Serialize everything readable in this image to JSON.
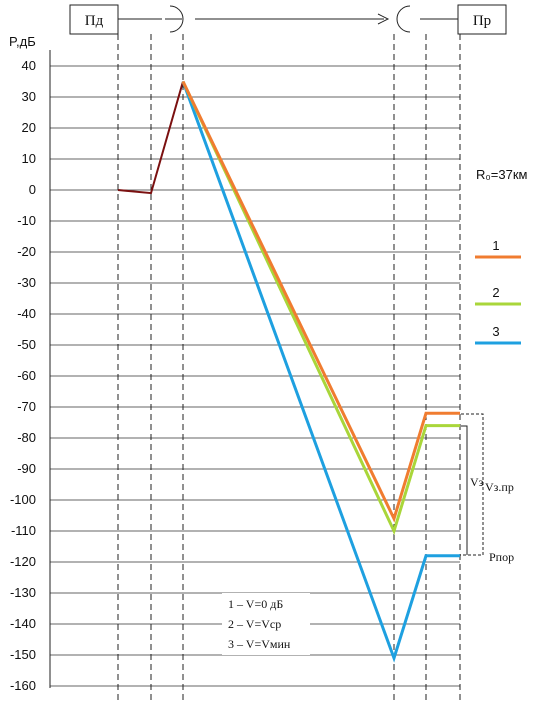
{
  "chart_data": {
    "type": "line",
    "ylabel": "P,дБ",
    "ylim": [
      -160,
      40
    ],
    "yticks": [
      40,
      30,
      20,
      10,
      0,
      -10,
      -20,
      -30,
      -40,
      -50,
      -60,
      -70,
      -80,
      -90,
      -100,
      -110,
      -120,
      -130,
      -140,
      -150,
      -160
    ],
    "grid": true,
    "stations": {
      "transmitter": "Пд",
      "receiver": "Пр"
    },
    "range_label": "R₀=37км",
    "transmitter_path": {
      "color": "#7b1010",
      "y": [
        0,
        -1,
        35
      ]
    },
    "series": [
      {
        "name": "1",
        "color": "#f07c30",
        "y": [
          35,
          -106,
          -72,
          -72
        ]
      },
      {
        "name": "2",
        "color": "#a9d63a",
        "y": [
          35,
          -110,
          -76,
          -76
        ]
      },
      {
        "name": "3",
        "color": "#1ea0e0",
        "y": [
          35,
          -151,
          -118,
          -118
        ]
      }
    ],
    "annotations": {
      "vz": "Vз",
      "vz_pr": "Vз.пр",
      "p_por": "Pпор",
      "notes": [
        "1 – V=0 дБ",
        "2 – V=Vср",
        "3 – V=Vмин"
      ]
    }
  }
}
